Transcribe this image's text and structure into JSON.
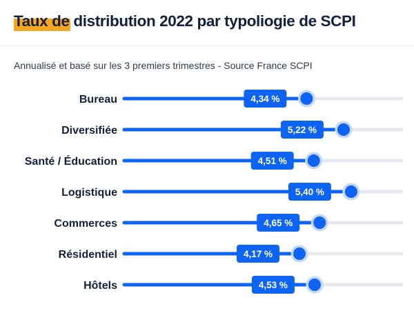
{
  "title": "Taux de distribution 2022 par typoliogie de SCPI",
  "subtitle": "Annualisé et basé sur les 3 premiers trimestres - Source France SCPI",
  "colors": {
    "bar": "#0d63f2",
    "track": "#e6e9ef",
    "label_bg": "#0d63f2",
    "dot_halo": "#c4d8fb",
    "highlight": "#f6a623",
    "text": "#12203d"
  },
  "chart_data": {
    "type": "bar",
    "orientation": "horizontal",
    "categories": [
      "Bureau",
      "Diversifiée",
      "Santé / Éducation",
      "Logistique",
      "Commerces",
      "Résidentiel",
      "Hôtels"
    ],
    "values": [
      4.34,
      5.22,
      4.51,
      5.4,
      4.65,
      4.17,
      4.53
    ],
    "data_labels": [
      "4,34 %",
      "5,22 %",
      "4,51 %",
      "5,40 %",
      "4,65 %",
      "4,17 %",
      "4,53 %"
    ],
    "title": "Taux de distribution 2022 par typoliogie de SCPI",
    "xlim": [
      0,
      6.6
    ],
    "grid": false,
    "legend": "none"
  }
}
